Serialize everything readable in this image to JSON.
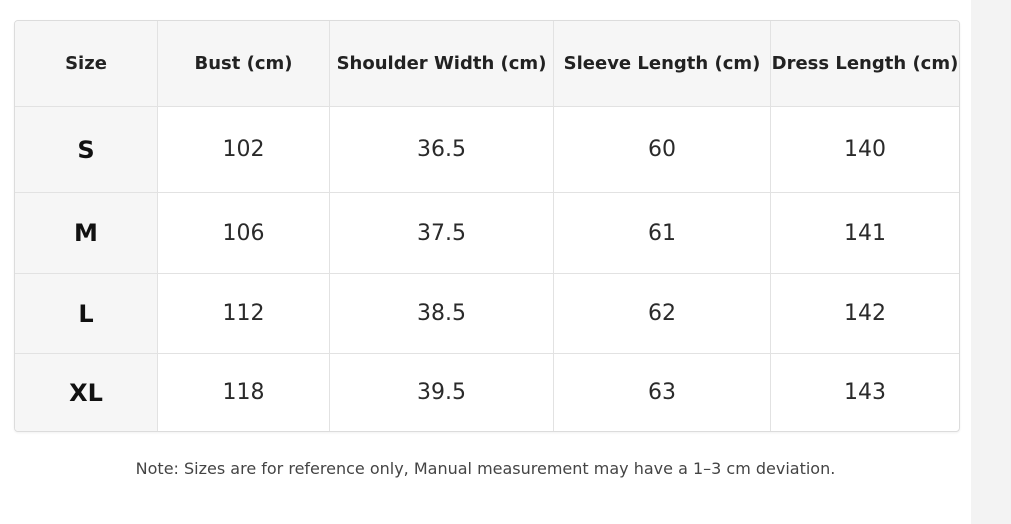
{
  "table": {
    "headers": [
      "Size",
      "Bust (cm)",
      "Shoulder Width (cm)",
      "Sleeve Length (cm)",
      "Dress Length (cm)"
    ],
    "rows": [
      [
        "S",
        "102",
        "36.5",
        "60",
        "140"
      ],
      [
        "M",
        "106",
        "37.5",
        "61",
        "141"
      ],
      [
        "L",
        "112",
        "38.5",
        "62",
        "142"
      ],
      [
        "XL",
        "118",
        "39.5",
        "63",
        "143"
      ]
    ]
  },
  "note": "Note: Sizes are for reference only, Manual measurement may have a 1–3 cm deviation."
}
